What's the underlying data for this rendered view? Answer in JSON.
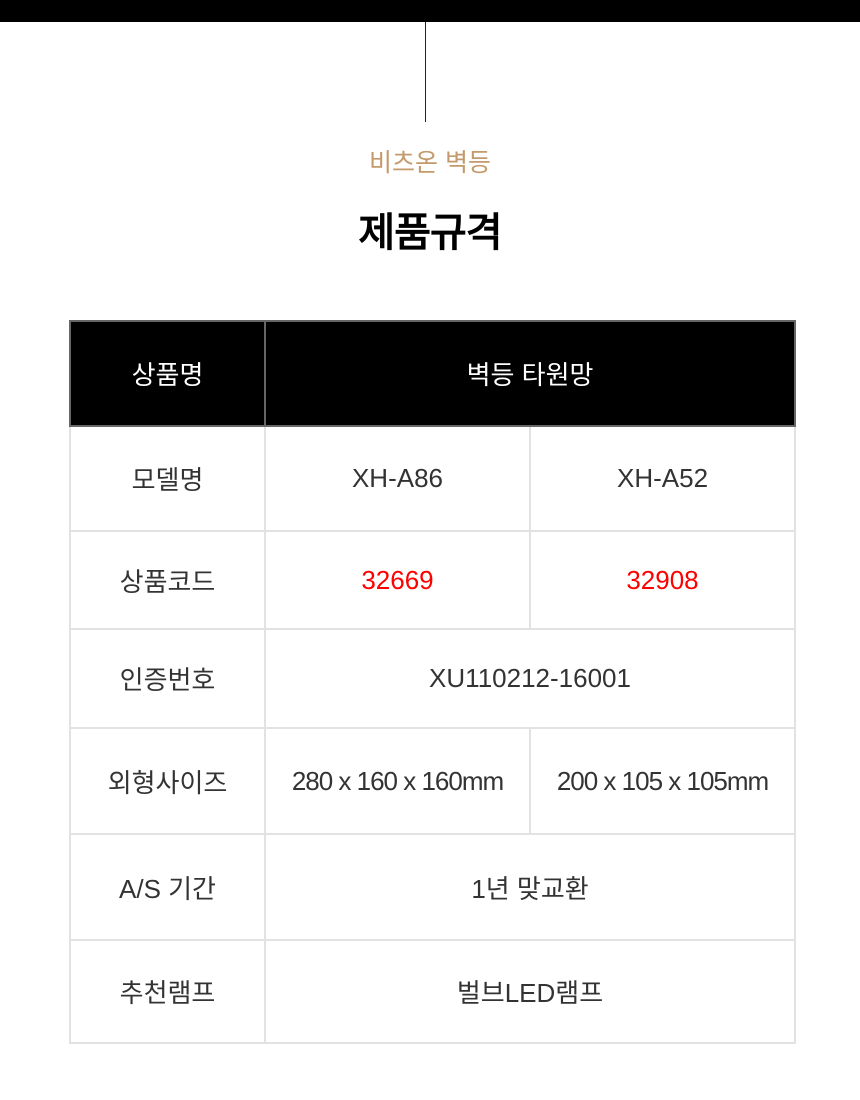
{
  "header": {
    "subtitle": "비츠온 벽등",
    "title": "제품규격"
  },
  "spec_table": {
    "product_name_label": "상품명",
    "product_name": "벽등 타원망",
    "rows": [
      {
        "label": "모델명",
        "values": [
          "XH-A86",
          "XH-A52"
        ]
      },
      {
        "label": "상품코드",
        "values": [
          "32669",
          "32908"
        ]
      },
      {
        "label": "인증번호",
        "value": "XU110212-16001"
      },
      {
        "label": "외형사이즈",
        "values": [
          "280 x 160 x 160mm",
          "200 x 105 x 105mm"
        ]
      },
      {
        "label": "A/S 기간",
        "value": "1년 맞교환"
      },
      {
        "label": "추천램프",
        "value": "벌브LED램프"
      }
    ]
  },
  "colors": {
    "accent": "#c49a6c",
    "code_red": "#ff0000",
    "header_bg": "#000000"
  }
}
